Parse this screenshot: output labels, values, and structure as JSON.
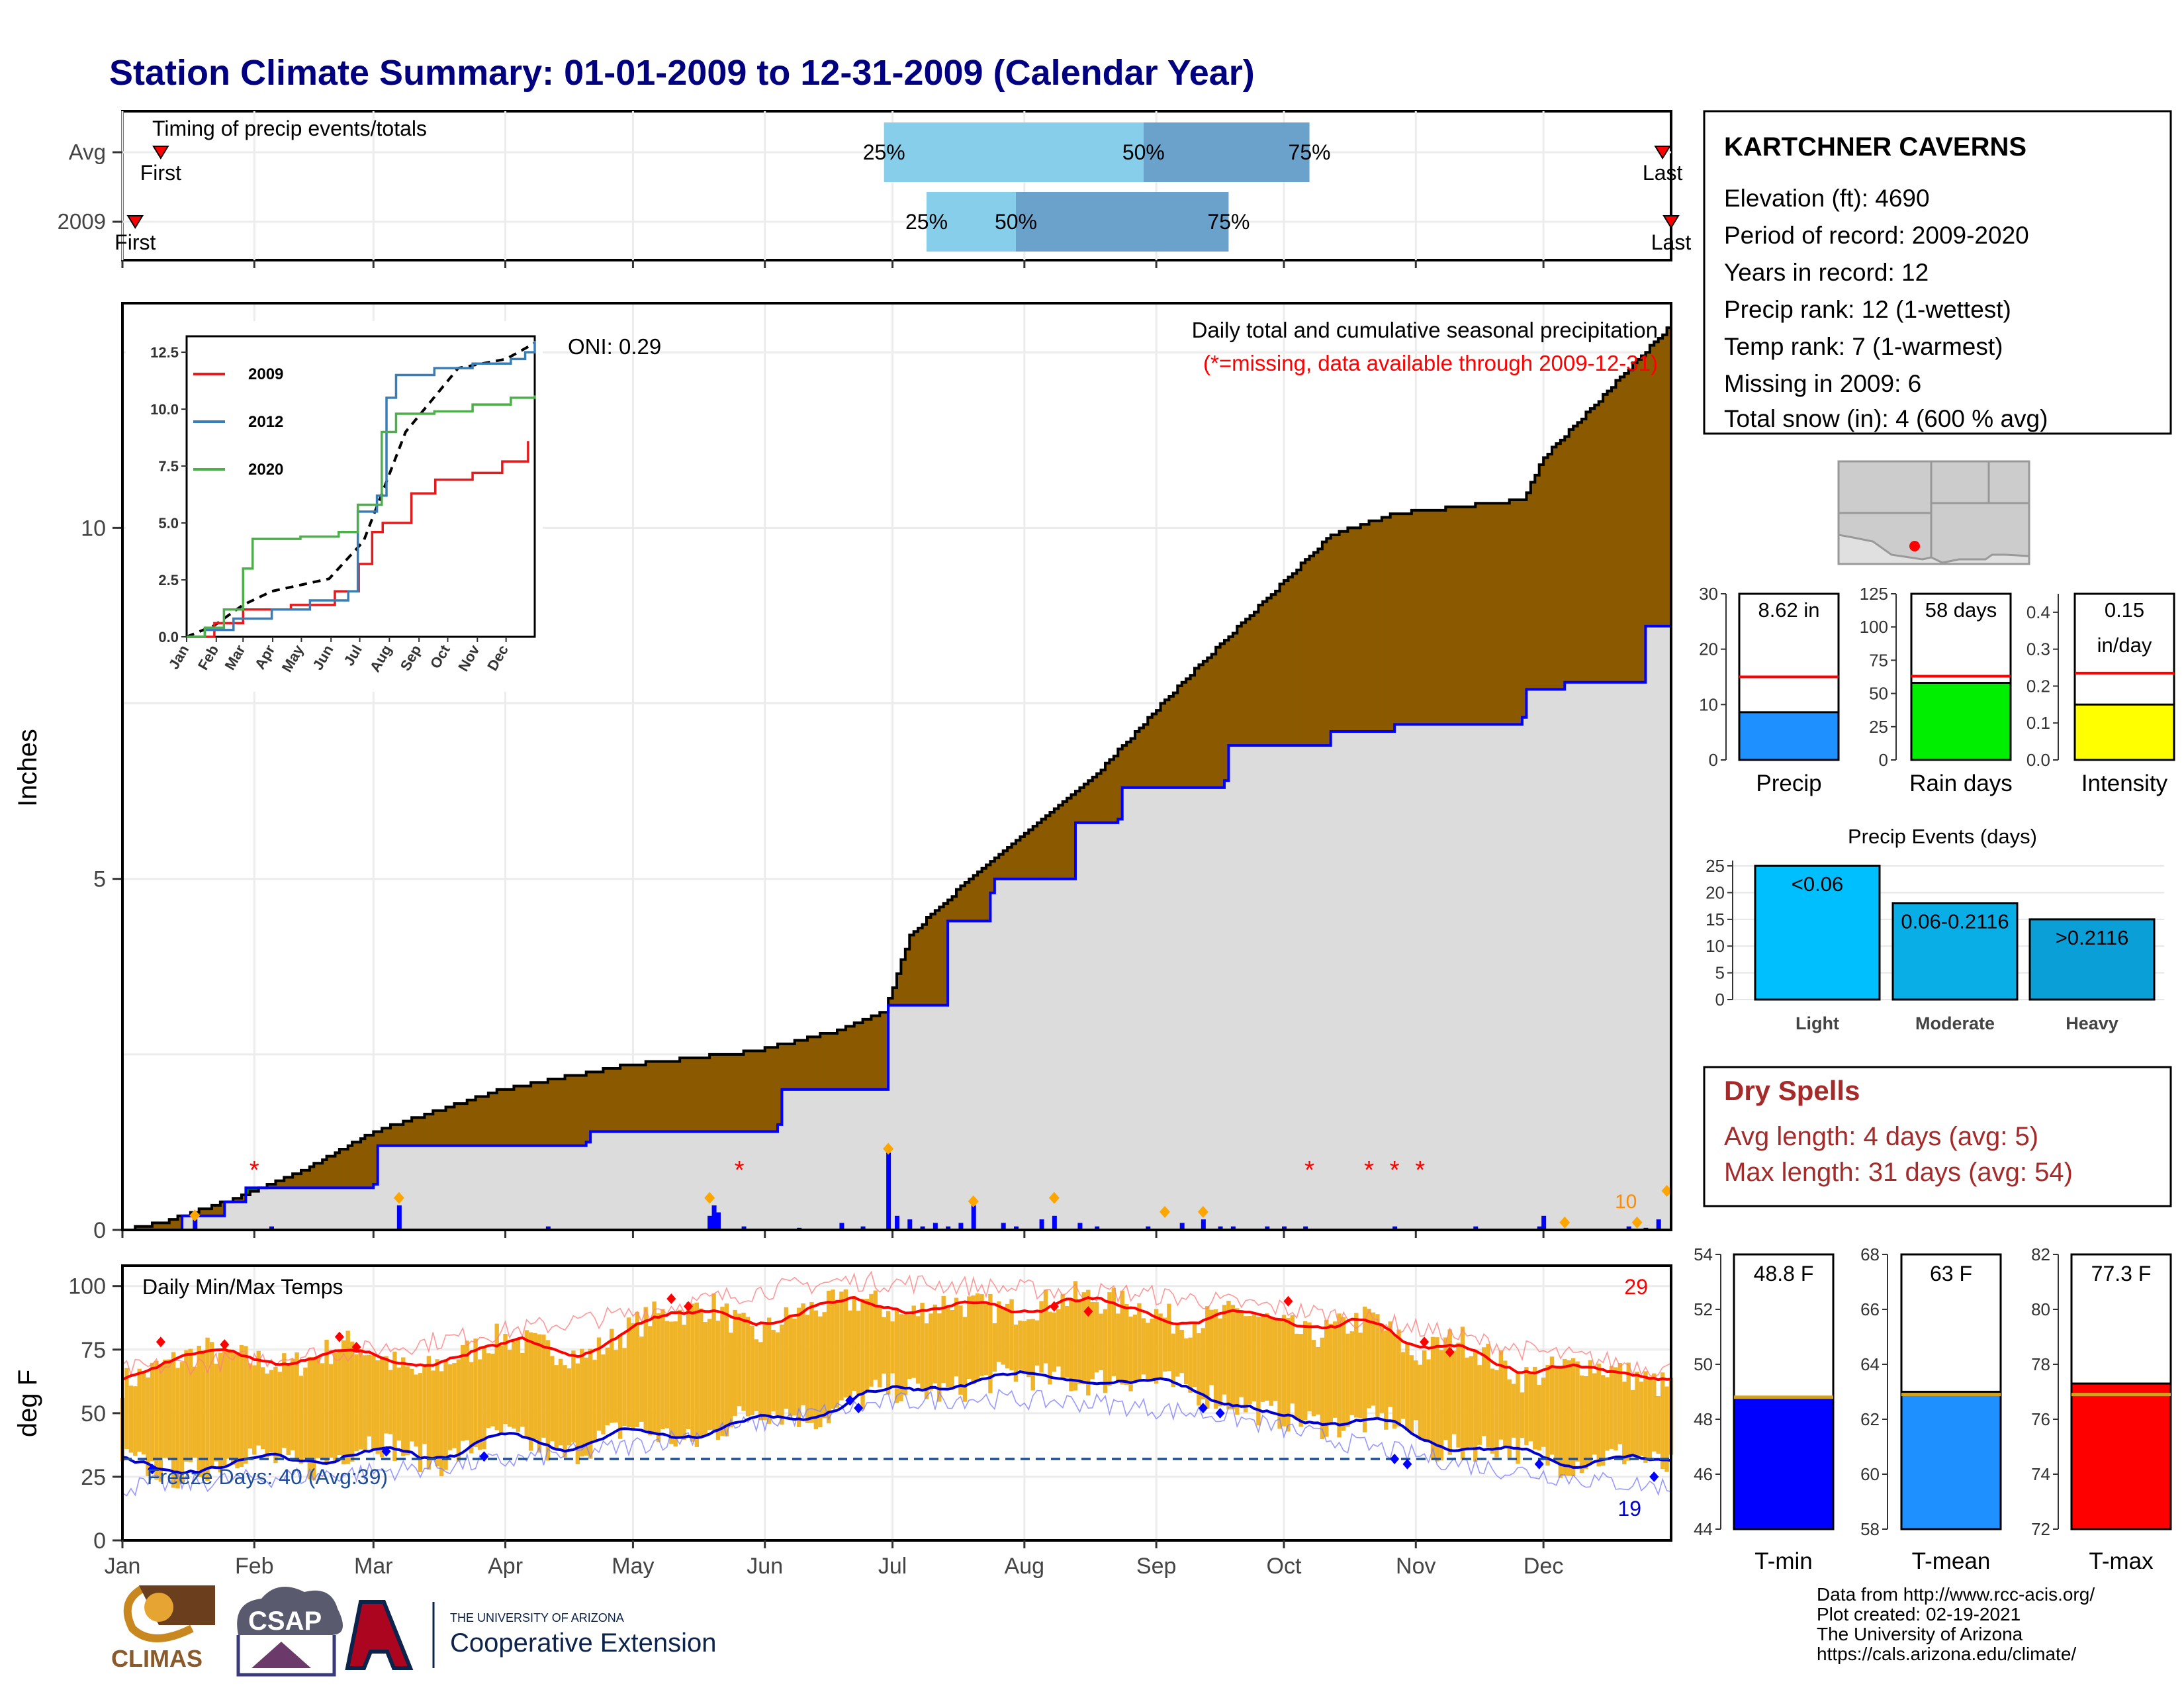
{
  "page": {
    "title": "Station Climate Summary: 01-01-2009 to 12-31-2009 (Calendar Year)",
    "credits": [
      "Data from http://www.rcc-acis.org/",
      "Plot created: 02-19-2021",
      "The University of Arizona",
      "https://cals.arizona.edu/climate/"
    ],
    "logos": {
      "climas": "CLIMAS",
      "csap": "CSAP",
      "ua_small": "THE UNIVERSITY OF ARIZONA",
      "ua_big": "Cooperative Extension"
    }
  },
  "station": {
    "name": "KARTCHNER CAVERNS",
    "lines": [
      "Elevation (ft): 4690",
      "Period of record: 2009-2020",
      "Years in record: 12",
      "Precip rank: 12 (1-wettest)",
      "Temp rank: 7 (1-warmest)",
      "Missing in 2009: 6",
      "Total snow (in): 4 (600 % avg)"
    ]
  },
  "timing": {
    "label": "Timing of precip events/totals",
    "first_label": "First",
    "last_label": "Last",
    "rows": [
      {
        "name": "Avg",
        "first": 10,
        "p25": 180,
        "p50": 241,
        "p75": 280,
        "last": 363
      },
      {
        "name": "2009",
        "first": 4,
        "p25": 190,
        "p50": 211,
        "p75": 261,
        "last": 365
      }
    ],
    "pct_labels": [
      "25%",
      "50%",
      "75%"
    ]
  },
  "months": [
    "Jan",
    "Feb",
    "Mar",
    "Apr",
    "May",
    "Jun",
    "Jul",
    "Aug",
    "Sep",
    "Oct",
    "Nov",
    "Dec"
  ],
  "precip": {
    "ylabel": "Inches",
    "yticks": [
      0,
      5,
      10
    ],
    "title": "Daily total and cumulative seasonal precipitation",
    "missing_note": "(*=missing, data available through 2009-12-31)",
    "oni": "ONI: 0.29",
    "end_count": "10",
    "missing_days": [
      32,
      146,
      280,
      294,
      300,
      306
    ],
    "cum_avg_points": [
      [
        1,
        0
      ],
      [
        10,
        0.1
      ],
      [
        30,
        0.5
      ],
      [
        45,
        0.9
      ],
      [
        60,
        1.4
      ],
      [
        90,
        2.0
      ],
      [
        120,
        2.35
      ],
      [
        150,
        2.55
      ],
      [
        170,
        2.85
      ],
      [
        180,
        3.1
      ],
      [
        186,
        4.2
      ],
      [
        200,
        5.0
      ],
      [
        230,
        6.5
      ],
      [
        250,
        7.8
      ],
      [
        270,
        9.0
      ],
      [
        285,
        9.9
      ],
      [
        300,
        10.2
      ],
      [
        330,
        10.4
      ],
      [
        335,
        11.0
      ],
      [
        365,
        12.9
      ]
    ],
    "cum_2009_points": [
      [
        1,
        0
      ],
      [
        12,
        0
      ],
      [
        15,
        0.2
      ],
      [
        25,
        0.4
      ],
      [
        30,
        0.6
      ],
      [
        60,
        0.65
      ],
      [
        61,
        1.2
      ],
      [
        110,
        1.25
      ],
      [
        111,
        1.4
      ],
      [
        155,
        1.5
      ],
      [
        156,
        2.0
      ],
      [
        180,
        2.0
      ],
      [
        181,
        3.2
      ],
      [
        195,
        4.4
      ],
      [
        205,
        4.8
      ],
      [
        206,
        5.0
      ],
      [
        225,
        5.8
      ],
      [
        235,
        5.85
      ],
      [
        236,
        6.3
      ],
      [
        260,
        6.4
      ],
      [
        261,
        6.9
      ],
      [
        285,
        7.1
      ],
      [
        300,
        7.2
      ],
      [
        330,
        7.3
      ],
      [
        331,
        7.7
      ],
      [
        340,
        7.8
      ],
      [
        358,
        7.8
      ],
      [
        359,
        8.6
      ],
      [
        365,
        8.6
      ]
    ],
    "daily_bars": [
      [
        18,
        0.15
      ],
      [
        36,
        0.05
      ],
      [
        66,
        0.35
      ],
      [
        101,
        0.05
      ],
      [
        139,
        0.2
      ],
      [
        140,
        0.35
      ],
      [
        141,
        0.25
      ],
      [
        147,
        0.05
      ],
      [
        160,
        0.03
      ],
      [
        170,
        0.1
      ],
      [
        175,
        0.05
      ],
      [
        181,
        1.1
      ],
      [
        183,
        0.2
      ],
      [
        186,
        0.15
      ],
      [
        189,
        0.05
      ],
      [
        192,
        0.1
      ],
      [
        195,
        0.05
      ],
      [
        198,
        0.1
      ],
      [
        201,
        0.35
      ],
      [
        208,
        0.1
      ],
      [
        211,
        0.05
      ],
      [
        217,
        0.15
      ],
      [
        220,
        0.2
      ],
      [
        226,
        0.1
      ],
      [
        230,
        0.05
      ],
      [
        242,
        0.05
      ],
      [
        250,
        0.1
      ],
      [
        255,
        0.15
      ],
      [
        259,
        0.05
      ],
      [
        262,
        0.05
      ],
      [
        270,
        0.05
      ],
      [
        274,
        0.05
      ],
      [
        279,
        0.05
      ],
      [
        300,
        0.05
      ],
      [
        319,
        0.05
      ],
      [
        334,
        0.05
      ],
      [
        335,
        0.2
      ],
      [
        355,
        0.05
      ],
      [
        359,
        0.03
      ],
      [
        362,
        0.15
      ]
    ],
    "diamonds": [
      [
        18,
        0.15
      ],
      [
        66,
        0.4
      ],
      [
        139,
        0.4
      ],
      [
        181,
        1.1
      ],
      [
        201,
        0.35
      ],
      [
        220,
        0.4
      ],
      [
        246,
        0.2
      ],
      [
        255,
        0.2
      ],
      [
        340,
        0.05
      ],
      [
        357,
        0.05
      ],
      [
        364,
        0.5
      ]
    ]
  },
  "inset": {
    "title": "",
    "yticks": [
      "0.0",
      "2.5",
      "5.0",
      "7.5",
      "10.0",
      "12.5"
    ],
    "months": [
      "Jan",
      "Feb",
      "Mar",
      "Apr",
      "May",
      "Jun",
      "Jul",
      "Aug",
      "Sep",
      "Oct",
      "Nov",
      "Dec"
    ],
    "series": [
      {
        "name": "2009",
        "color": "#e41a1c",
        "points": [
          [
            1,
            0
          ],
          [
            30,
            0.6
          ],
          [
            60,
            1.2
          ],
          [
            110,
            1.4
          ],
          [
            156,
            2.0
          ],
          [
            181,
            3.2
          ],
          [
            195,
            4.6
          ],
          [
            206,
            5.0
          ],
          [
            236,
            6.3
          ],
          [
            261,
            6.9
          ],
          [
            300,
            7.2
          ],
          [
            331,
            7.7
          ],
          [
            358,
            8.6
          ]
        ]
      },
      {
        "name": "2012",
        "color": "#377eb8",
        "points": [
          [
            1,
            0
          ],
          [
            20,
            0.3
          ],
          [
            50,
            0.8
          ],
          [
            90,
            1.2
          ],
          [
            130,
            1.6
          ],
          [
            170,
            2.0
          ],
          [
            180,
            5.5
          ],
          [
            200,
            6.2
          ],
          [
            210,
            10.5
          ],
          [
            220,
            11.5
          ],
          [
            260,
            11.8
          ],
          [
            300,
            12.0
          ],
          [
            340,
            12.2
          ],
          [
            355,
            12.5
          ],
          [
            365,
            13.0
          ]
        ]
      },
      {
        "name": "2020",
        "color": "#4daf4a",
        "points": [
          [
            1,
            0
          ],
          [
            20,
            0.4
          ],
          [
            40,
            1.2
          ],
          [
            60,
            3.0
          ],
          [
            70,
            4.3
          ],
          [
            120,
            4.4
          ],
          [
            160,
            4.6
          ],
          [
            180,
            5.8
          ],
          [
            205,
            9.0
          ],
          [
            220,
            9.8
          ],
          [
            260,
            9.9
          ],
          [
            300,
            10.2
          ],
          [
            340,
            10.5
          ],
          [
            365,
            10.6
          ]
        ]
      }
    ],
    "avg_points": [
      [
        1,
        0
      ],
      [
        30,
        0.5
      ],
      [
        60,
        1.4
      ],
      [
        90,
        2.0
      ],
      [
        150,
        2.55
      ],
      [
        186,
        4.2
      ],
      [
        230,
        9.0
      ],
      [
        285,
        11.8
      ],
      [
        335,
        12.2
      ],
      [
        365,
        12.9
      ]
    ]
  },
  "temps": {
    "ylabel": "deg F",
    "label": "Daily Min/Max Temps",
    "freeze_label": "Freeze Days: 40 (Avg:39)",
    "yticks": [
      0,
      25,
      50,
      75,
      100
    ],
    "freeze_line": 32,
    "count_max": "29",
    "count_min": "19",
    "avg_max": [
      [
        1,
        58
      ],
      [
        30,
        62
      ],
      [
        60,
        66
      ],
      [
        90,
        73
      ],
      [
        120,
        80
      ],
      [
        150,
        89
      ],
      [
        170,
        93
      ],
      [
        190,
        92
      ],
      [
        210,
        90
      ],
      [
        240,
        88
      ],
      [
        270,
        83
      ],
      [
        300,
        76
      ],
      [
        330,
        66
      ],
      [
        365,
        58
      ]
    ],
    "avg_min": [
      [
        1,
        30
      ],
      [
        30,
        33
      ],
      [
        60,
        36
      ],
      [
        90,
        40
      ],
      [
        120,
        46
      ],
      [
        150,
        55
      ],
      [
        180,
        63
      ],
      [
        200,
        65
      ],
      [
        230,
        63
      ],
      [
        260,
        58
      ],
      [
        290,
        47
      ],
      [
        320,
        38
      ],
      [
        350,
        32
      ],
      [
        365,
        30
      ]
    ],
    "max_2009_anchors": [
      [
        1,
        62
      ],
      [
        20,
        75
      ],
      [
        40,
        68
      ],
      [
        55,
        78
      ],
      [
        70,
        65
      ],
      [
        90,
        80
      ],
      [
        110,
        72
      ],
      [
        125,
        88
      ],
      [
        140,
        92
      ],
      [
        150,
        80
      ],
      [
        160,
        90
      ],
      [
        175,
        95
      ],
      [
        185,
        88
      ],
      [
        195,
        94
      ],
      [
        210,
        90
      ],
      [
        225,
        96
      ],
      [
        240,
        92
      ],
      [
        250,
        85
      ],
      [
        265,
        90
      ],
      [
        280,
        80
      ],
      [
        295,
        88
      ],
      [
        305,
        72
      ],
      [
        315,
        80
      ],
      [
        330,
        64
      ],
      [
        345,
        70
      ],
      [
        365,
        60
      ]
    ],
    "min_2009_anchors": [
      [
        1,
        32
      ],
      [
        15,
        25
      ],
      [
        30,
        35
      ],
      [
        45,
        28
      ],
      [
        60,
        40
      ],
      [
        75,
        30
      ],
      [
        90,
        42
      ],
      [
        105,
        33
      ],
      [
        120,
        45
      ],
      [
        135,
        38
      ],
      [
        150,
        52
      ],
      [
        165,
        48
      ],
      [
        180,
        60
      ],
      [
        195,
        58
      ],
      [
        210,
        66
      ],
      [
        225,
        62
      ],
      [
        240,
        64
      ],
      [
        255,
        58
      ],
      [
        270,
        50
      ],
      [
        285,
        45
      ],
      [
        300,
        48
      ],
      [
        310,
        35
      ],
      [
        325,
        38
      ],
      [
        340,
        30
      ],
      [
        355,
        34
      ],
      [
        365,
        28
      ]
    ],
    "max_records": [
      [
        10,
        78
      ],
      [
        25,
        77
      ],
      [
        52,
        80
      ],
      [
        56,
        76
      ],
      [
        130,
        95
      ],
      [
        134,
        92
      ],
      [
        220,
        92
      ],
      [
        228,
        90
      ],
      [
        275,
        94
      ],
      [
        307,
        78
      ],
      [
        313,
        74
      ]
    ],
    "min_records": [
      [
        8,
        28
      ],
      [
        63,
        35
      ],
      [
        86,
        33
      ],
      [
        172,
        55
      ],
      [
        174,
        52
      ],
      [
        255,
        52
      ],
      [
        259,
        50
      ],
      [
        300,
        32
      ],
      [
        303,
        30
      ],
      [
        334,
        30
      ],
      [
        361,
        25
      ]
    ]
  },
  "summary_bars": {
    "precip": {
      "label": "Precip",
      "value_text": "8.62 in",
      "value": 8.62,
      "avg": 15,
      "ymax": 30,
      "yticks": [
        0,
        10,
        20,
        30
      ],
      "color": "#1e90ff"
    },
    "raindays": {
      "label": "Rain days",
      "value_text": "58 days",
      "value": 58,
      "avg": 63,
      "ymax": 125,
      "yticks": [
        0,
        25,
        50,
        75,
        100,
        125
      ],
      "color": "#00ee00"
    },
    "intensity": {
      "label": "Intensity",
      "value_text": "0.15",
      "value_text2": "in/day",
      "value": 0.15,
      "avg": 0.235,
      "ymax": 0.45,
      "yticks": [
        "0.0",
        "0.1",
        "0.2",
        "0.3",
        "0.4"
      ],
      "color": "#ffff00"
    }
  },
  "events": {
    "title": "Precip Events (days)",
    "yticks": [
      0,
      5,
      10,
      15,
      20,
      25
    ],
    "bars": [
      {
        "category": "Light",
        "label": "<0.06",
        "value": 25,
        "color": "#00bfff"
      },
      {
        "category": "Moderate",
        "label": "0.06-0.2116",
        "value": 18,
        "color": "#0aaee6"
      },
      {
        "category": "Heavy",
        "label": ">0.2116",
        "value": 15,
        "color": "#0a9fd6"
      }
    ]
  },
  "dry_spells": {
    "title": "Dry Spells",
    "lines": [
      "Avg length: 4 days (avg: 5)",
      "Max length: 31 days (avg: 54)"
    ]
  },
  "temp_bars": {
    "tmin": {
      "label": "T-min",
      "value_text": "48.8 F",
      "value": 48.8,
      "avg": 48.8,
      "ymin": 44,
      "ymax": 54,
      "yticks": [
        44,
        46,
        48,
        50,
        52,
        54
      ],
      "color": "#0000ff"
    },
    "tmean": {
      "label": "T-mean",
      "value_text": "63 F",
      "value": 63.0,
      "avg": 62.9,
      "ymin": 58,
      "ymax": 68,
      "yticks": [
        58,
        60,
        62,
        64,
        66,
        68
      ],
      "color": "#1e90ff"
    },
    "tmax": {
      "label": "T-max",
      "value_text": "77.3 F",
      "value": 77.3,
      "avg": 76.9,
      "ymin": 72,
      "ymax": 82,
      "yticks": [
        72,
        74,
        76,
        78,
        80,
        82
      ],
      "color": "#ff0000"
    }
  },
  "chart_data": [
    {
      "type": "area",
      "title": "Daily total and cumulative seasonal precipitation",
      "ylabel": "Inches",
      "ylim": [
        0,
        13.2
      ],
      "x_categories": [
        "Jan",
        "Feb",
        "Mar",
        "Apr",
        "May",
        "Jun",
        "Jul",
        "Aug",
        "Sep",
        "Oct",
        "Nov",
        "Dec"
      ],
      "series": [
        {
          "name": "2009",
          "final_value": 8.62
        },
        {
          "name": "Avg",
          "final_value": 12.9
        }
      ]
    },
    {
      "type": "line",
      "ylabel": "deg F",
      "ylim": [
        0,
        108
      ],
      "x_categories": [
        "Jan",
        "Feb",
        "Mar",
        "Apr",
        "May",
        "Jun",
        "Jul",
        "Aug",
        "Sep",
        "Oct",
        "Nov",
        "Dec"
      ]
    },
    {
      "type": "bar",
      "categories": [
        "Precip",
        "Rain days",
        "Intensity"
      ],
      "series": [
        {
          "values": [
            8.62,
            58,
            0.15
          ]
        }
      ]
    },
    {
      "type": "bar",
      "title": "Precip Events (days)",
      "categories": [
        "Light",
        "Moderate",
        "Heavy"
      ],
      "series": [
        {
          "values": [
            25,
            18,
            15
          ]
        }
      ]
    },
    {
      "type": "bar",
      "categories": [
        "T-min",
        "T-mean",
        "T-max"
      ],
      "series": [
        {
          "values": [
            48.8,
            63.0,
            77.3
          ]
        }
      ]
    }
  ]
}
